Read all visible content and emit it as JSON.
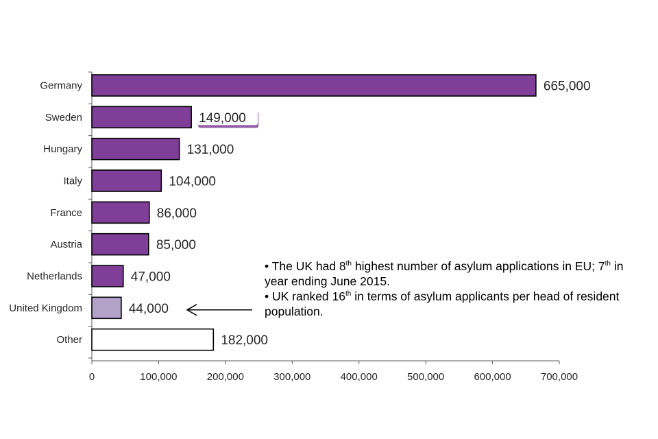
{
  "chart_data": {
    "type": "bar",
    "orientation": "horizontal",
    "categories": [
      "Germany",
      "Sweden",
      "Hungary",
      "Italy",
      "France",
      "Austria",
      "Netherlands",
      "United Kingdom",
      "Other"
    ],
    "values": [
      665000,
      149000,
      131000,
      104000,
      86000,
      85000,
      47000,
      44000,
      182000
    ],
    "data_labels": [
      "665,000",
      "149,000",
      "131,000",
      "104,000",
      "86,000",
      "85,000",
      "47,000",
      "44,000",
      "182,000"
    ],
    "bar_colors": [
      "#7f3f98",
      "#7f3f98",
      "#7f3f98",
      "#7f3f98",
      "#7f3f98",
      "#7f3f98",
      "#7f3f98",
      "#b3a2c7",
      "#ffffff"
    ],
    "xlim": [
      0,
      700000
    ],
    "xticks": [
      0,
      100000,
      200000,
      300000,
      400000,
      500000,
      600000,
      700000
    ],
    "xtick_labels": [
      "0",
      "100,000",
      "200,000",
      "300,000",
      "400,000",
      "500,000",
      "600,000",
      "700,000"
    ],
    "title": "",
    "xlabel": "",
    "ylabel": "",
    "grid": false,
    "highlighted_label": "Sweden",
    "annotation_arrow_target": "United Kingdom"
  },
  "notes": {
    "note1": {
      "part1": "• The UK had 8",
      "sup1": "th",
      "part2": " highest number of asylum applications in EU; 7",
      "sup2": "th",
      "part3": " in",
      "line2": "year ending June 2015."
    },
    "note2": {
      "part1": "• UK ranked 16",
      "sup1": "th",
      "part2": " in terms of asylum applicants per head of resident",
      "line2": "population."
    }
  },
  "colors": {
    "bar": "#7f3f98",
    "uk_bar": "#b3a2c7",
    "other_bar": "#ffffff",
    "highlight_underline": "#7f3f98",
    "axis": "#595959",
    "text": "#262626"
  }
}
